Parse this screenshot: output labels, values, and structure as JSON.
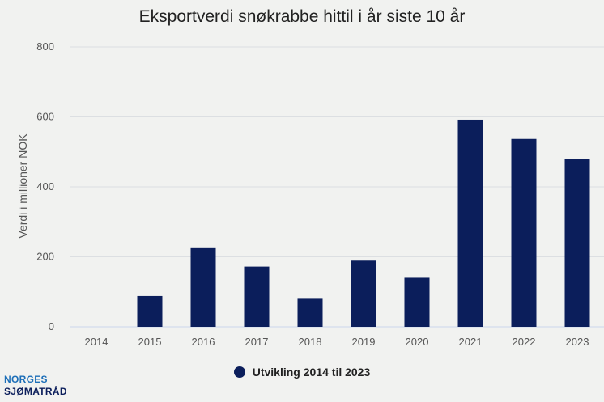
{
  "colors": {
    "bar": "#0b1e5b",
    "grid": "#dcdfe2",
    "axis": "#ccd6eb"
  },
  "logo": {
    "line1": "NORGES",
    "line2": "SJØMATRÅD"
  },
  "chart_data": {
    "type": "bar",
    "title": "Eksportverdi snøkrabbe hittil i år siste 10 år",
    "xlabel": "",
    "ylabel": "Verdi i millioner NOK",
    "ylim": [
      0,
      800
    ],
    "yticks": [
      0,
      200,
      400,
      600,
      800
    ],
    "grid": true,
    "legend_position": "bottom-center",
    "categories": [
      "2014",
      "2015",
      "2016",
      "2017",
      "2018",
      "2019",
      "2020",
      "2021",
      "2022",
      "2023"
    ],
    "series": [
      {
        "name": "Utvikling 2014 til 2023",
        "values": [
          0,
          88,
          227,
          172,
          80,
          189,
          140,
          592,
          537,
          480
        ]
      }
    ]
  }
}
